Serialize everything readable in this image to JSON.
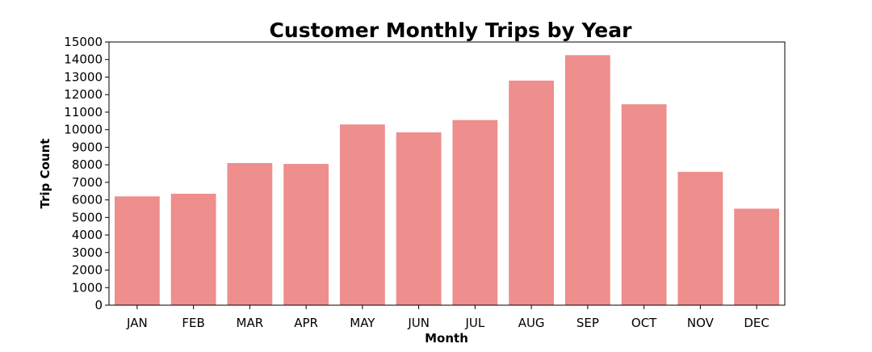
{
  "chart_data": {
    "type": "bar",
    "title": "Customer Monthly Trips by Year",
    "xlabel": "Month",
    "ylabel": "Trip Count",
    "categories": [
      "JAN",
      "FEB",
      "MAR",
      "APR",
      "MAY",
      "JUN",
      "JUL",
      "AUG",
      "SEP",
      "OCT",
      "NOV",
      "DEC"
    ],
    "values": [
      6200,
      6350,
      8100,
      8050,
      10300,
      9850,
      10550,
      12800,
      14250,
      11450,
      7600,
      5500
    ],
    "ylim": [
      0,
      15000
    ],
    "yticks": [
      0,
      1000,
      2000,
      3000,
      4000,
      5000,
      6000,
      7000,
      8000,
      9000,
      10000,
      11000,
      12000,
      13000,
      14000,
      15000
    ],
    "grid": false,
    "legend": "none",
    "bar_color": "#ee8e8d"
  }
}
